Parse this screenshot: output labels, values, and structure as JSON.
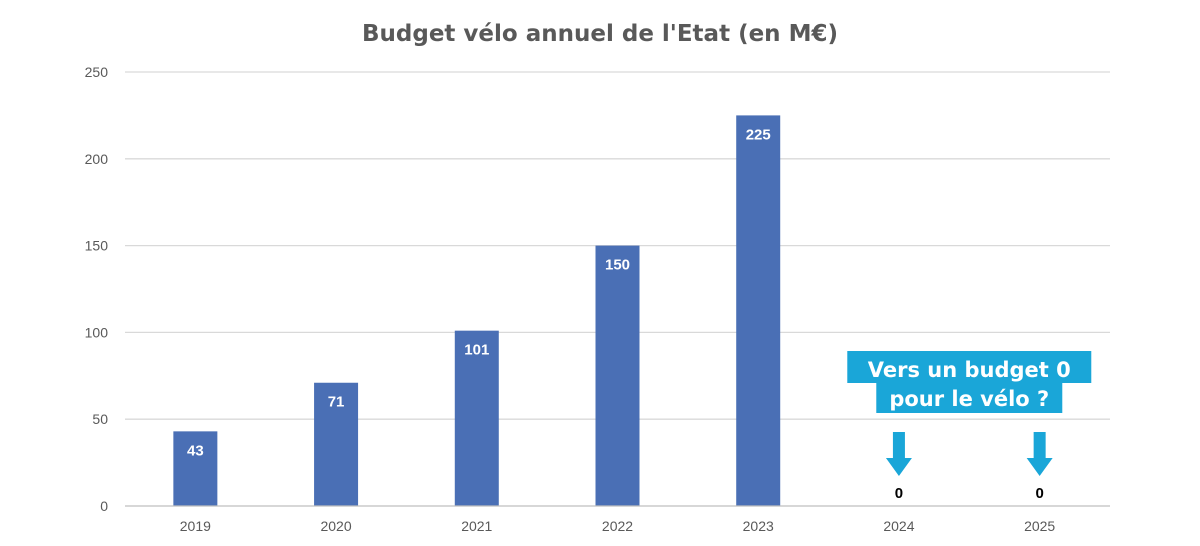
{
  "colors": {
    "bar": "#4a6fb5",
    "accent": "#1aa6d8"
  },
  "chart_data": {
    "type": "bar",
    "title": "Budget vélo annuel de l'Etat (en M€)",
    "xlabel": "",
    "ylabel": "",
    "ylim": [
      0,
      250
    ],
    "yticks": [
      0,
      50,
      100,
      150,
      200,
      250
    ],
    "grid": true,
    "categories": [
      "2019",
      "2020",
      "2021",
      "2022",
      "2023",
      "2024",
      "2025"
    ],
    "values": [
      43,
      71,
      101,
      150,
      225,
      0,
      0
    ],
    "annotation": {
      "lines": [
        "Vers un budget  0",
        "pour le vélo ?"
      ],
      "arrows_to": [
        "2024",
        "2025"
      ]
    }
  }
}
